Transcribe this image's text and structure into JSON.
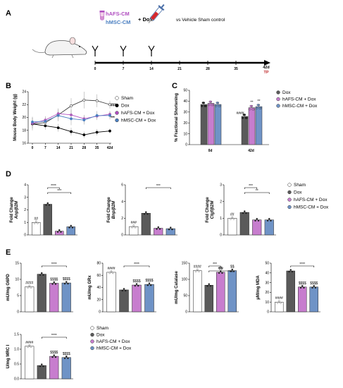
{
  "colors": {
    "sham": "#ffffff",
    "dox": "#5a5a5a",
    "hafs": "#c77dce",
    "hmsc": "#6f93c6",
    "hafs_text": "#b04fc0",
    "hmsc_text": "#4a7fc1",
    "tp": "#c0282a",
    "bracket": "#000000",
    "error": "#777777"
  },
  "icons": [
    "mouse-icon",
    "syringe-icon",
    "vial-icon",
    "injection-arrow-icon"
  ],
  "panel_a": {
    "label": "A",
    "treatment_hafs": "hAFS-CM",
    "treatment_hmsc": "hMSC-CM",
    "plus_dox": "+ Dox",
    "vehicle_text": "vs Vehicle Sham control",
    "timeline_ticks": [
      "0",
      "7",
      "14",
      "21",
      "28",
      "35"
    ],
    "timeline_end": "42d",
    "tp_label": "TP"
  },
  "chart_data": [
    {
      "panel": "B",
      "type": "line",
      "ylabel": "Mouse Body Weight (g)",
      "x": [
        "0",
        "7",
        "14",
        "21",
        "28",
        "35",
        "42d"
      ],
      "ylim": [
        16,
        24
      ],
      "yticks": [
        "16",
        "18",
        "20",
        "22",
        "24"
      ],
      "series": [
        {
          "name": "Sham",
          "values": [
            19.0,
            19.2,
            20.4,
            21.8,
            22.7,
            22.6,
            22.0
          ],
          "errors": [
            1.0,
            0.8,
            1.0,
            1.2,
            1.3,
            1.0,
            0.6
          ]
        },
        {
          "name": "Dox",
          "values": [
            19.0,
            18.7,
            18.4,
            17.8,
            17.3,
            17.7,
            17.9
          ],
          "errors": [
            0.5,
            0.6,
            0.6,
            0.6,
            0.5,
            0.5,
            0.4
          ]
        },
        {
          "name": "hAFS-CM + Dox",
          "values": [
            19.1,
            19.6,
            20.6,
            20.4,
            19.8,
            20.2,
            20.5
          ],
          "errors": [
            0.8,
            0.6,
            0.7,
            0.8,
            0.6,
            0.5,
            0.5
          ]
        },
        {
          "name": "hMSC-CM + Dox",
          "values": [
            19.3,
            19.4,
            20.3,
            19.8,
            19.6,
            20.3,
            20.3
          ],
          "errors": [
            0.8,
            0.6,
            0.8,
            1.0,
            0.7,
            0.7,
            0.6
          ]
        }
      ],
      "annotations": [
        "###",
        "***"
      ]
    },
    {
      "panel": "C",
      "type": "bar",
      "ylabel": "% Fractional Shortening",
      "categories": [
        "0d",
        "42d"
      ],
      "ylim": [
        0,
        50
      ],
      "yticks": [
        "0",
        "10",
        "20",
        "30",
        "40",
        "50"
      ],
      "series": [
        {
          "name": "Dox",
          "values": [
            37,
            26
          ]
        },
        {
          "name": "hAFS-CM + Dox",
          "values": [
            38,
            34
          ]
        },
        {
          "name": "hMSC-CM + Dox",
          "values": [
            37,
            35
          ]
        }
      ],
      "annotations": [
        "####",
        "**",
        "**"
      ]
    },
    {
      "panel": "D1",
      "type": "bar",
      "ylabel": "Fold Change",
      "ylabel_gene": "Anp/β2M",
      "ylim": [
        0,
        4
      ],
      "yticks": [
        "0",
        "1",
        "2",
        "3",
        "4"
      ],
      "series": [
        {
          "name": "Sham",
          "values": [
            1.0
          ]
        },
        {
          "name": "Dox",
          "values": [
            2.45
          ]
        },
        {
          "name": "hAFS-CM + Dox",
          "values": [
            0.3
          ]
        },
        {
          "name": "hMSC-CM + Dox",
          "values": [
            0.65
          ]
        }
      ],
      "annotations": [
        "##",
        "****",
        "***"
      ]
    },
    {
      "panel": "D2",
      "type": "bar",
      "ylabel": "Fold Change",
      "ylabel_gene": "Bnp/β2M",
      "ylim": [
        0,
        6
      ],
      "yticks": [
        "0",
        "2",
        "4",
        "6"
      ],
      "series": [
        {
          "name": "Sham",
          "values": [
            1.0
          ]
        },
        {
          "name": "Dox",
          "values": [
            2.6
          ]
        },
        {
          "name": "hAFS-CM + Dox",
          "values": [
            0.8
          ]
        },
        {
          "name": "hMSC-CM + Dox",
          "values": [
            0.75
          ]
        }
      ],
      "annotations": [
        "###",
        "***"
      ]
    },
    {
      "panel": "D3",
      "type": "bar",
      "ylabel": "Fold Change",
      "ylabel_gene": "Ctgf/β2M",
      "ylim": [
        0,
        3
      ],
      "yticks": [
        "0",
        "1",
        "2",
        "3"
      ],
      "series": [
        {
          "name": "Sham",
          "values": [
            1.0
          ]
        },
        {
          "name": "Dox",
          "values": [
            1.35
          ]
        },
        {
          "name": "hAFS-CM + Dox",
          "values": [
            0.9
          ]
        },
        {
          "name": "hMSC-CM + Dox",
          "values": [
            0.9
          ]
        }
      ],
      "annotations": [
        "##",
        "***",
        "**"
      ]
    },
    {
      "panel": "E1",
      "type": "bar",
      "ylabel": "mU/mg G6PD",
      "ylim": [
        0,
        15
      ],
      "yticks": [
        "0",
        "5",
        "10",
        "15"
      ],
      "series": [
        {
          "name": "Sham",
          "values": [
            7.7
          ]
        },
        {
          "name": "Dox",
          "values": [
            11.6
          ]
        },
        {
          "name": "hAFS-CM + Dox",
          "values": [
            8.8
          ]
        },
        {
          "name": "hMSC-CM + Dox",
          "values": [
            8.9
          ]
        }
      ],
      "annotations": [
        "####",
        "****",
        "$$$$",
        "$$$$"
      ]
    },
    {
      "panel": "E2",
      "type": "bar",
      "ylabel": "mU/mg GRx",
      "ylim": [
        0,
        80
      ],
      "yticks": [
        "0",
        "20",
        "40",
        "60",
        "80"
      ],
      "series": [
        {
          "name": "Sham",
          "values": [
            65
          ]
        },
        {
          "name": "Dox",
          "values": [
            36
          ]
        },
        {
          "name": "hAFS-CM + Dox",
          "values": [
            44
          ]
        },
        {
          "name": "hMSC-CM + Dox",
          "values": [
            45
          ]
        }
      ],
      "annotations": [
        "####",
        "****",
        "$$$$",
        "$$$$"
      ]
    },
    {
      "panel": "E3",
      "type": "bar",
      "ylabel": "mU/mg Catalase",
      "ylim": [
        0,
        150
      ],
      "yticks": [
        "0",
        "50",
        "100",
        "150"
      ],
      "series": [
        {
          "name": "Sham",
          "values": [
            127
          ]
        },
        {
          "name": "Dox",
          "values": [
            82
          ]
        },
        {
          "name": "hAFS-CM + Dox",
          "values": [
            122
          ]
        },
        {
          "name": "hMSC-CM + Dox",
          "values": [
            127
          ]
        }
      ],
      "annotations": [
        "####",
        "***",
        "****",
        "$$",
        "$$"
      ]
    },
    {
      "panel": "E4",
      "type": "bar",
      "ylabel": "µM/mg MDA",
      "ylim": [
        0,
        50
      ],
      "yticks": [
        "0",
        "10",
        "20",
        "30",
        "40",
        "50"
      ],
      "series": [
        {
          "name": "Sham",
          "values": [
            10
          ]
        },
        {
          "name": "Dox",
          "values": [
            42
          ]
        },
        {
          "name": "hAFS-CM + Dox",
          "values": [
            25.5
          ]
        },
        {
          "name": "hMSC-CM + Dox",
          "values": [
            25.5
          ]
        }
      ],
      "annotations": [
        "####",
        "****",
        "$$$$",
        "$$$$"
      ]
    },
    {
      "panel": "E5",
      "type": "bar",
      "ylabel": "U/mg MRC I",
      "ylim": [
        0,
        1.5
      ],
      "yticks": [
        "0.0",
        "0.5",
        "1.0",
        "1.5"
      ],
      "series": [
        {
          "name": "Sham",
          "values": [
            1.1
          ]
        },
        {
          "name": "Dox",
          "values": [
            0.45
          ]
        },
        {
          "name": "hAFS-CM + Dox",
          "values": [
            0.76
          ]
        },
        {
          "name": "hMSC-CM + Dox",
          "values": [
            0.72
          ]
        }
      ],
      "annotations": [
        "####",
        "****",
        "$$$$",
        "$$$$"
      ]
    }
  ],
  "legend4": [
    "Sham",
    "Dox",
    "hAFS-CM + Dox",
    "hMSC-CM + Dox"
  ],
  "legend3": [
    "Dox",
    "hAFS-CM + Dox",
    "hMSC-CM + Dox"
  ],
  "panel_letters": [
    "B",
    "C",
    "D",
    "E"
  ]
}
